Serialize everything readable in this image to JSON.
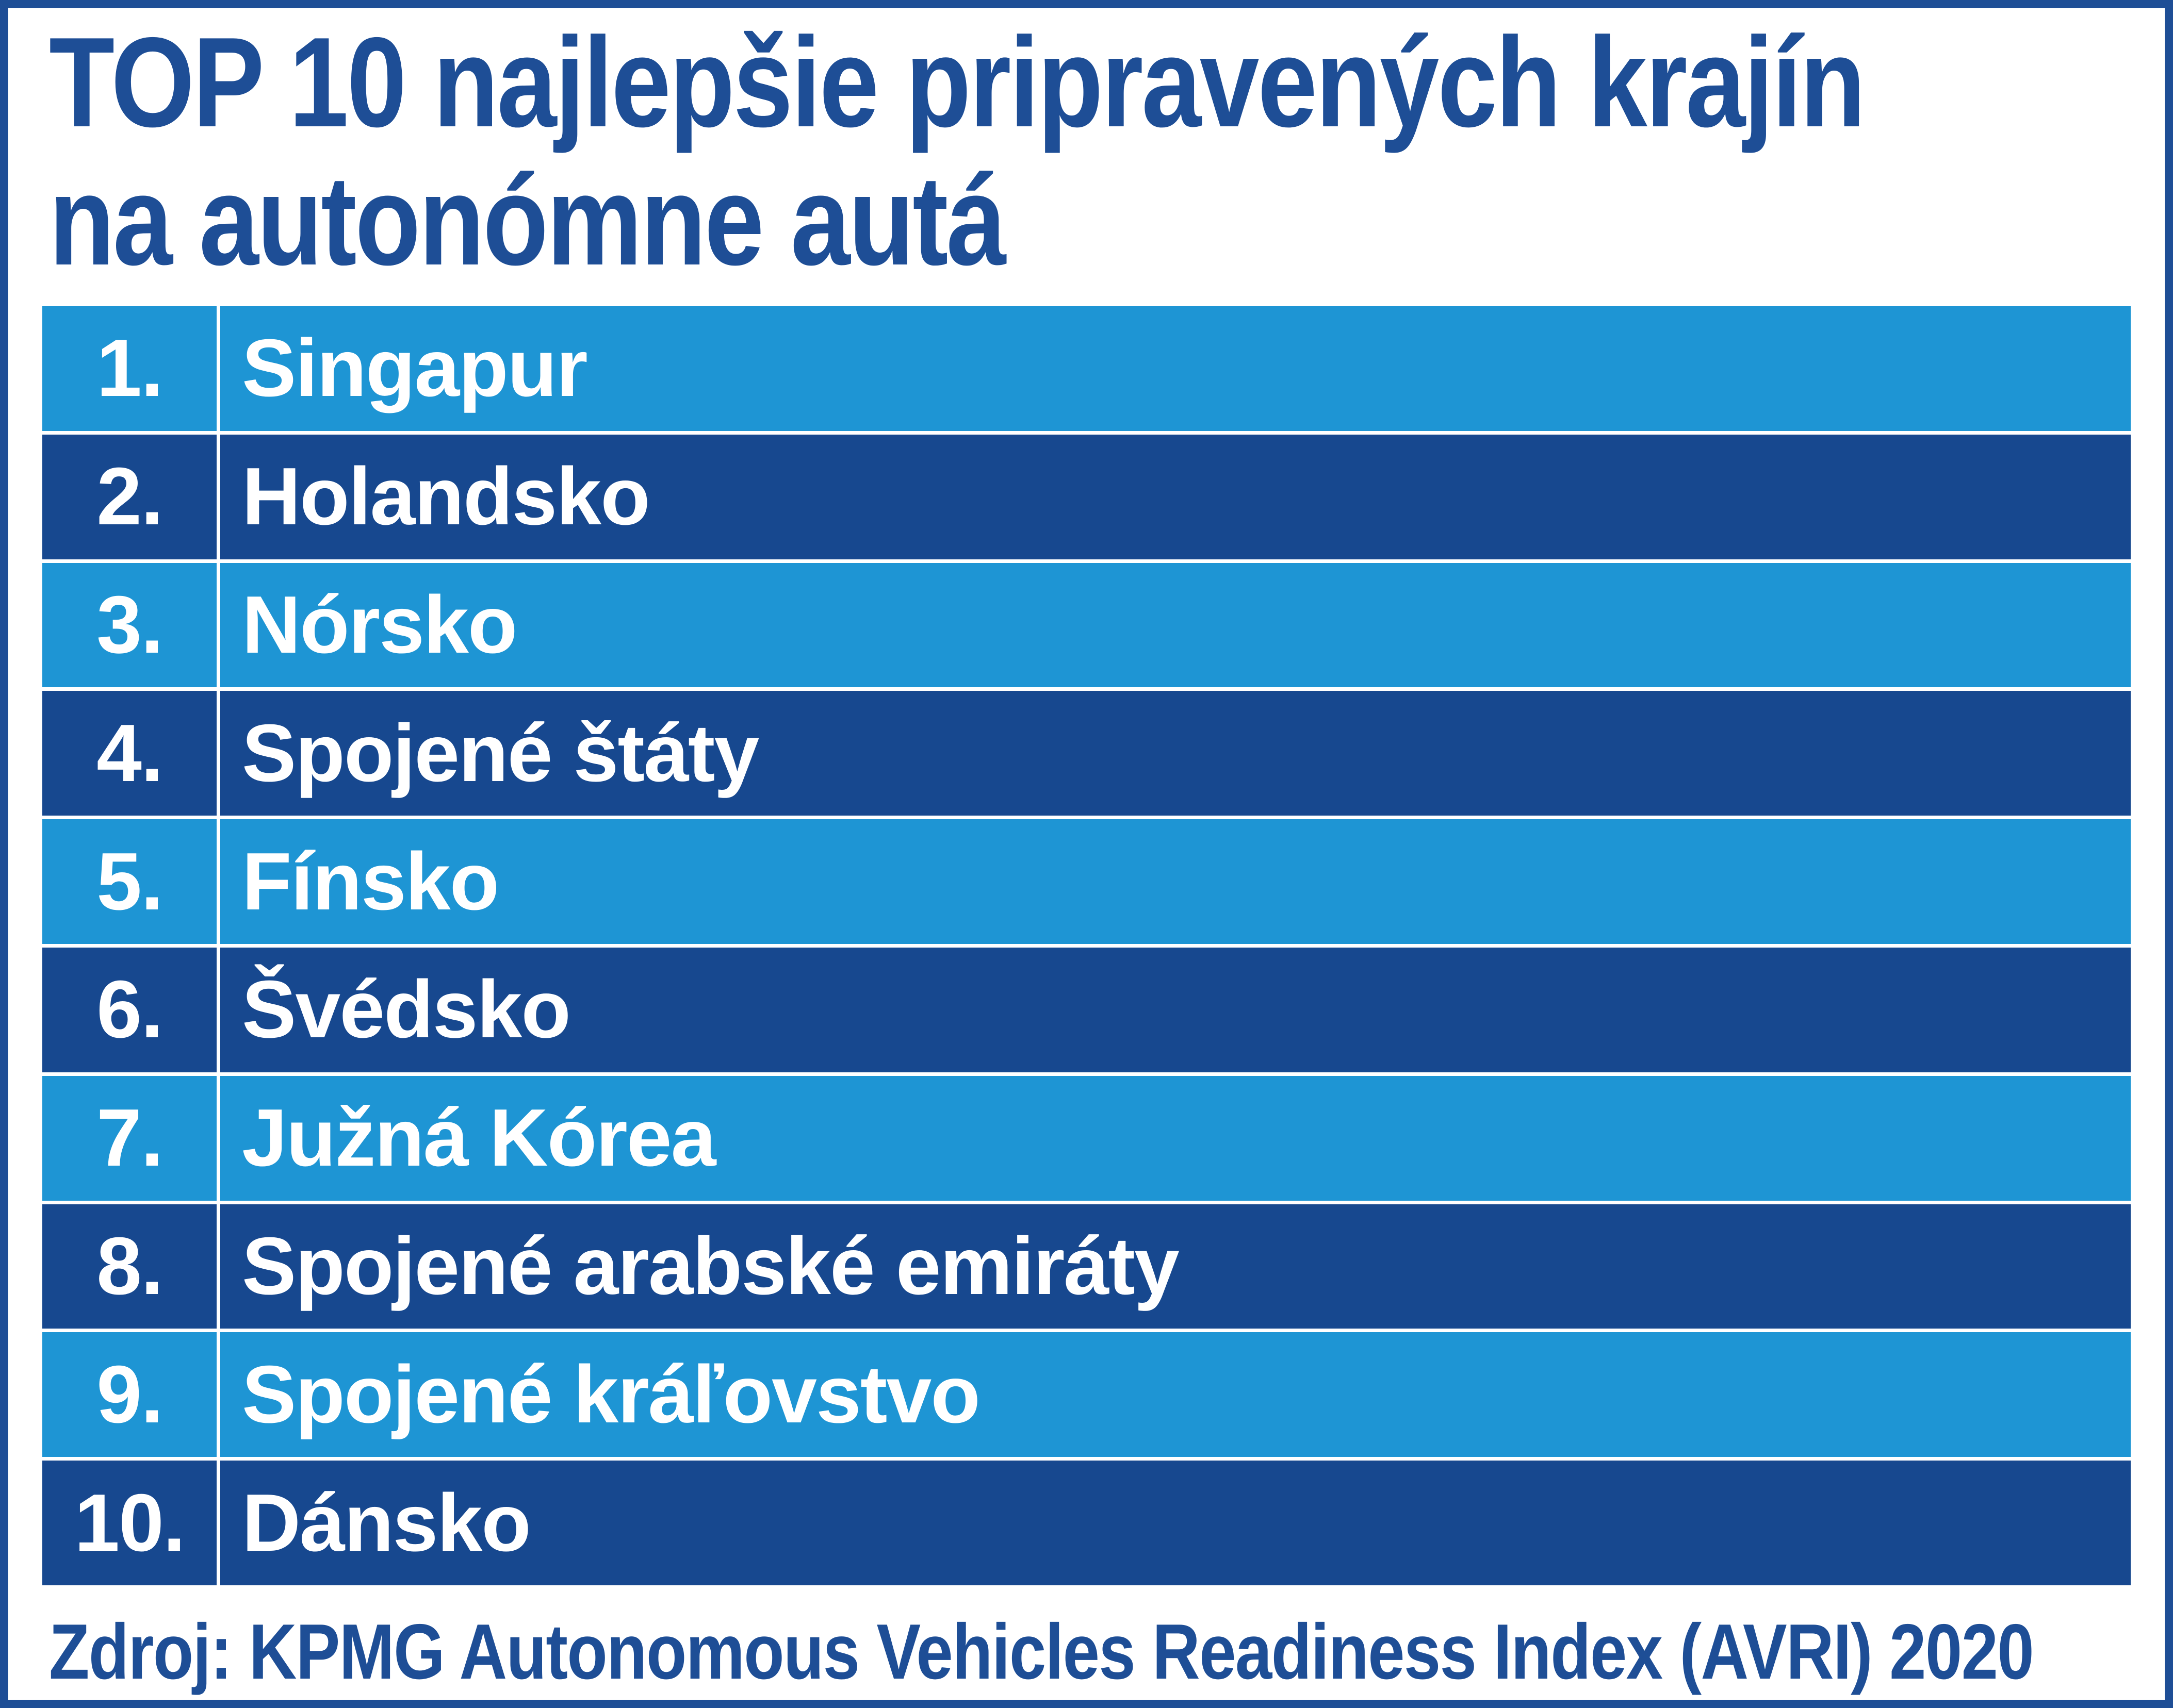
{
  "title": {
    "line1": "TOP 10 najlepšie pripravených krajín",
    "line2": "na autonómne autá"
  },
  "ranking": {
    "rows": [
      {
        "rank": "1.",
        "country": "Singapur"
      },
      {
        "rank": "2.",
        "country": "Holandsko"
      },
      {
        "rank": "3.",
        "country": "Nórsko"
      },
      {
        "rank": "4.",
        "country": "Spojené štáty"
      },
      {
        "rank": "5.",
        "country": "Fínsko"
      },
      {
        "rank": "6.",
        "country": "Švédsko"
      },
      {
        "rank": "7.",
        "country": "Južná Kórea"
      },
      {
        "rank": "8.",
        "country": "Spojené arabské emiráty"
      },
      {
        "rank": "9.",
        "country": "Spojené kráľovstvo"
      },
      {
        "rank": "10.",
        "country": "Dánsko"
      }
    ]
  },
  "source": {
    "text": "Zdroj: KPMG Autonomous Vehicles Readiness Index (AVRI) 2020"
  },
  "colors": {
    "light_row": "#1E95D4",
    "dark_row": "#17488F",
    "accent": "#1E4E96",
    "row_text": "#FFFFFF"
  },
  "chart_data": {
    "type": "table",
    "title": "TOP 10 najlepšie pripravených krajín na autonómne autá",
    "columns": [
      "rank",
      "country"
    ],
    "rows": [
      [
        "1.",
        "Singapur"
      ],
      [
        "2.",
        "Holandsko"
      ],
      [
        "3.",
        "Nórsko"
      ],
      [
        "4.",
        "Spojené štáty"
      ],
      [
        "5.",
        "Fínsko"
      ],
      [
        "6.",
        "Švédsko"
      ],
      [
        "7.",
        "Južná Kórea"
      ],
      [
        "8.",
        "Spojené arabské emiráty"
      ],
      [
        "9.",
        "Spojené kráľovstvo"
      ],
      [
        "10.",
        "Dánsko"
      ]
    ],
    "source": "Zdroj: KPMG Autonomous Vehicles Readiness Index (AVRI) 2020",
    "layout": {
      "alternating_row_colors": [
        "light",
        "dark"
      ],
      "grid": "white separators",
      "legend": "none"
    }
  }
}
